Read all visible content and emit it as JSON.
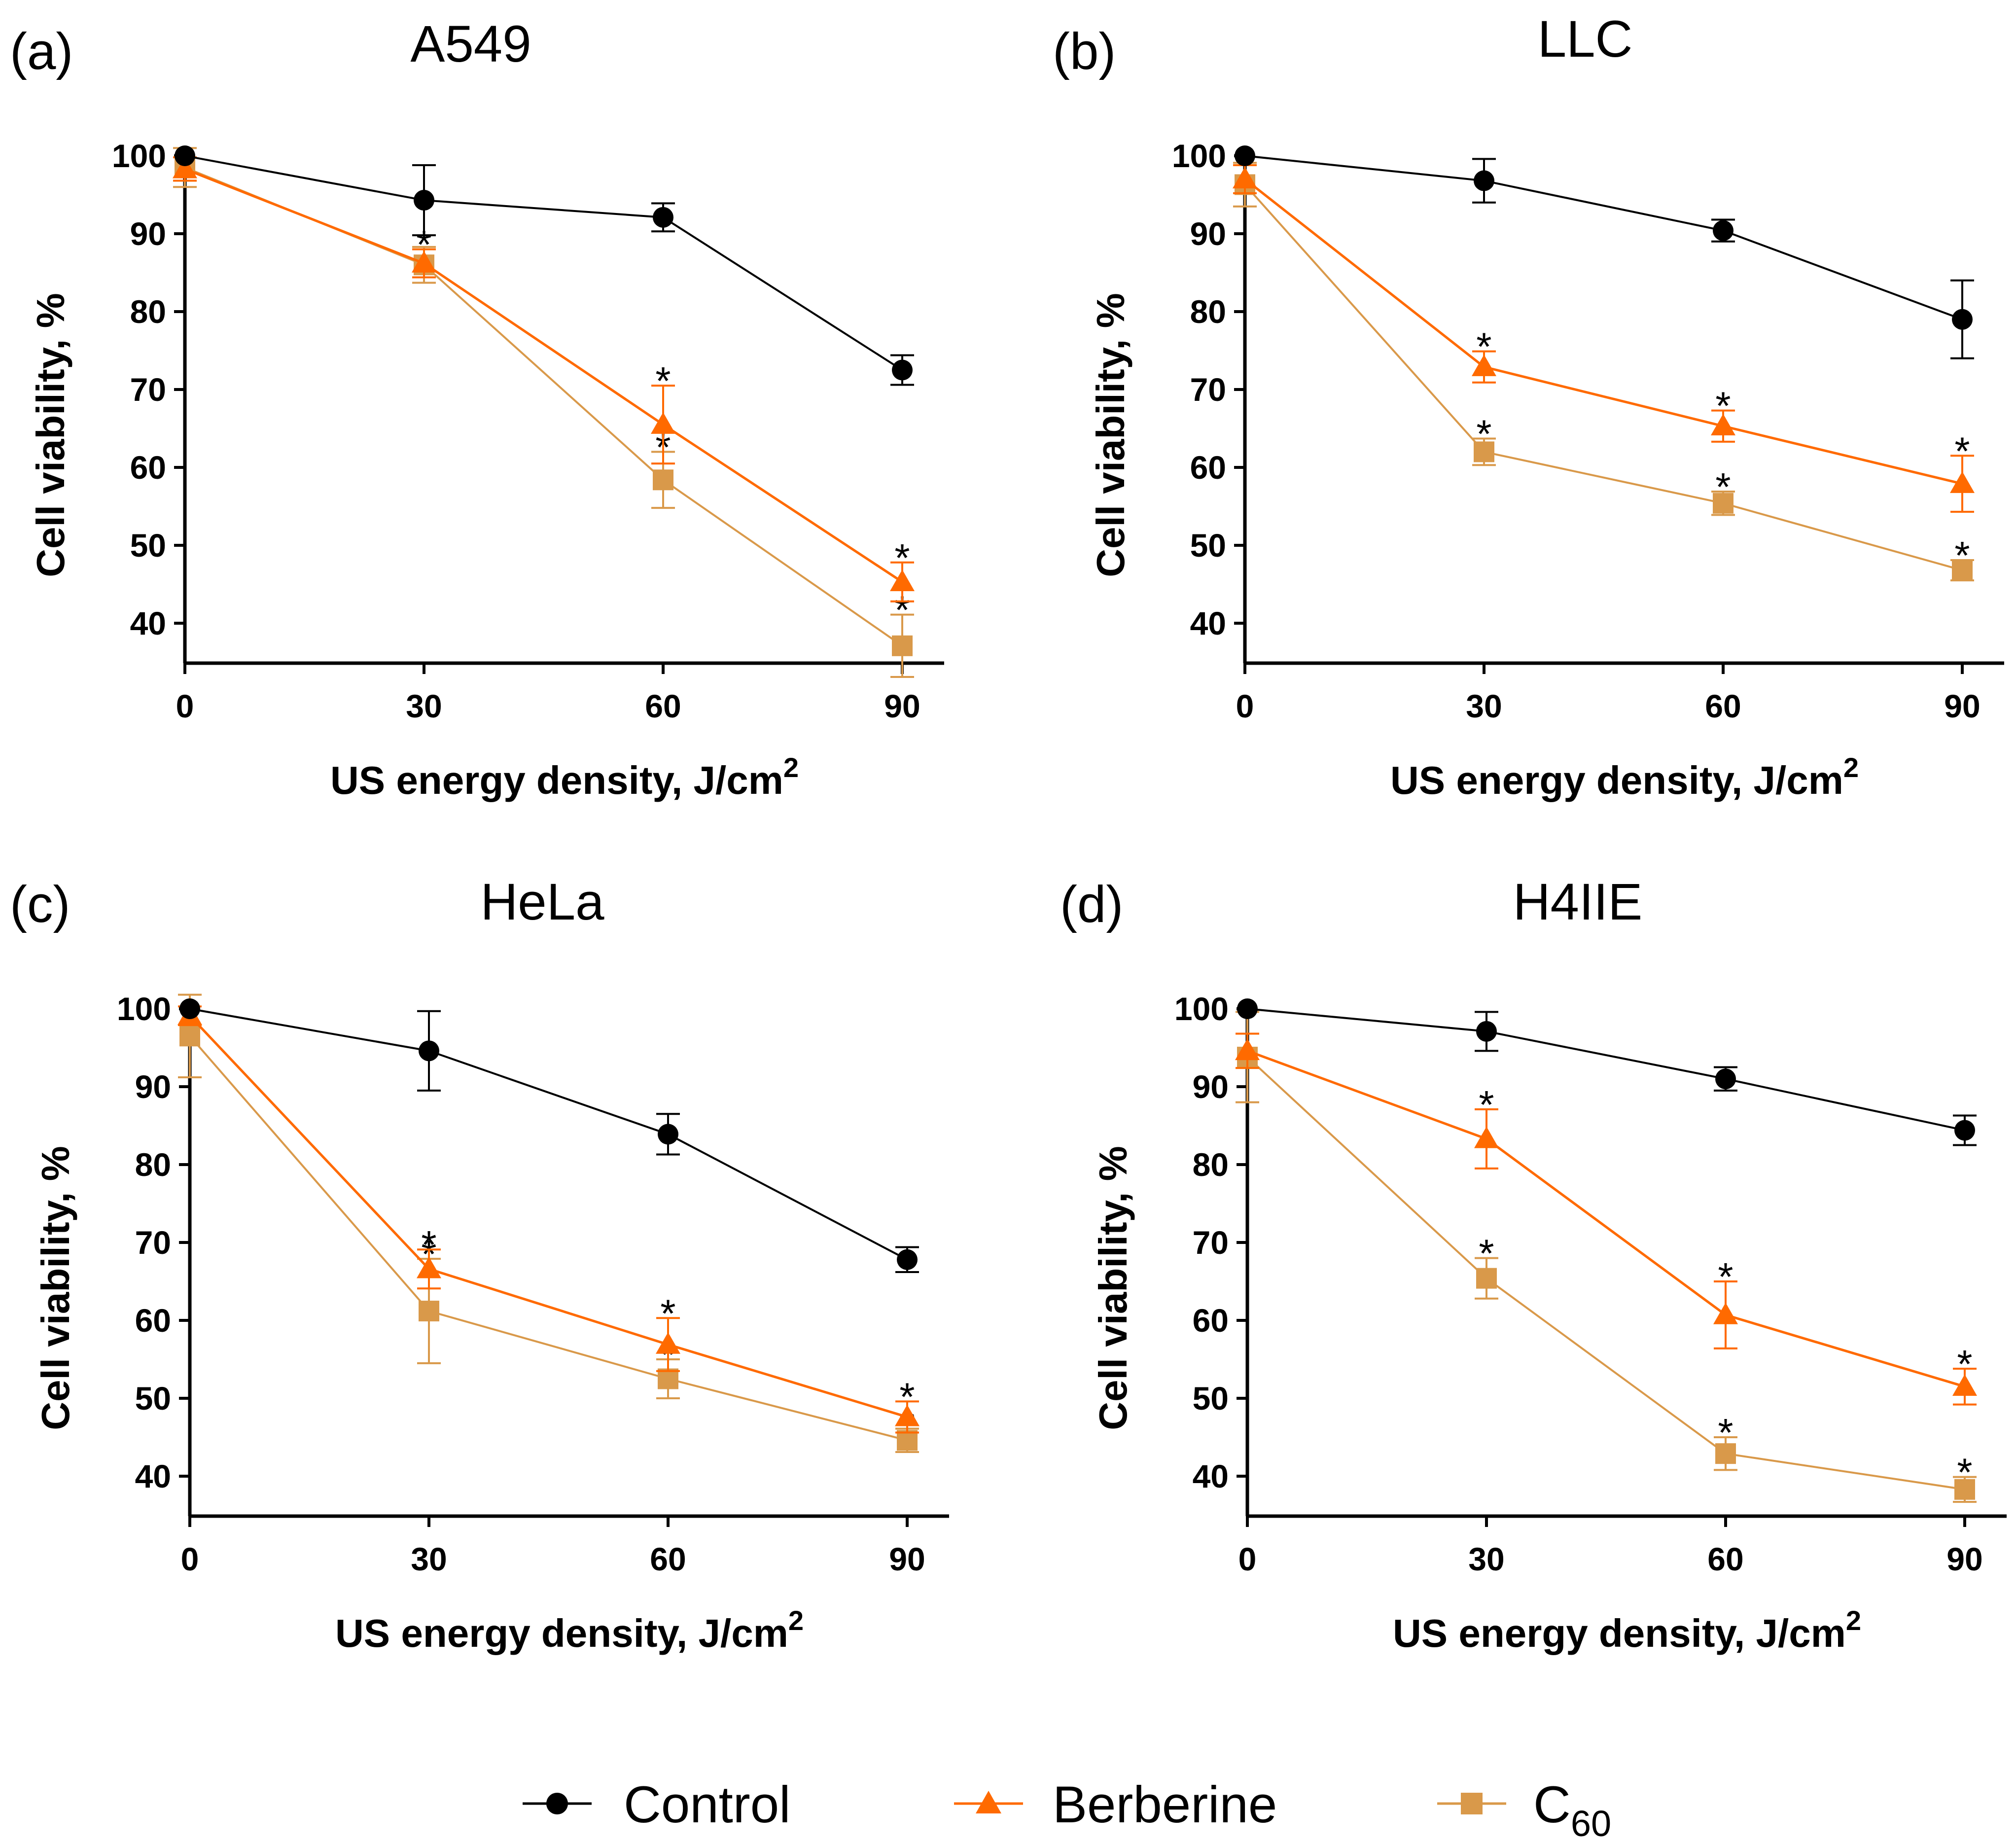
{
  "chart_data": [
    {
      "panel_label": "(a)",
      "type": "line",
      "title": "A549",
      "xlabel": "US energy density, J/cm",
      "xlabel_sup": "2",
      "ylabel": "Cell viability, %",
      "x": [
        0,
        30,
        60,
        90
      ],
      "x_ticks": [
        "0",
        "30",
        "60",
        "90"
      ],
      "y_ticks": [
        "40",
        "50",
        "60",
        "70",
        "80",
        "90",
        "100"
      ],
      "ylim": [
        35,
        102
      ],
      "series": [
        {
          "name": "Control",
          "values": [
            100,
            94.3,
            92.1,
            72.5
          ],
          "errors": [
            0,
            4.5,
            1.8,
            1.9
          ],
          "stars": [
            "",
            "",
            "",
            ""
          ]
        },
        {
          "name": "Berberine",
          "values": [
            98.3,
            86.2,
            65.5,
            45.3
          ],
          "errors": [
            1.5,
            1.8,
            5.0,
            2.5
          ],
          "stars": [
            "",
            "*",
            "*",
            "*"
          ]
        },
        {
          "name": "C60",
          "values": [
            98.5,
            86.0,
            58.4,
            37.1
          ],
          "errors": [
            2.5,
            2.3,
            3.6,
            4.0
          ],
          "stars": [
            "",
            "",
            "*",
            "*"
          ]
        }
      ]
    },
    {
      "panel_label": "(b)",
      "type": "line",
      "title": "LLC",
      "xlabel": "US energy density, J/cm",
      "xlabel_sup": "2",
      "ylabel": "Cell viability, %",
      "x": [
        0,
        30,
        60,
        90
      ],
      "x_ticks": [
        "0",
        "30",
        "60",
        "90"
      ],
      "y_ticks": [
        "40",
        "50",
        "60",
        "70",
        "80",
        "90",
        "100"
      ],
      "ylim": [
        35,
        102
      ],
      "series": [
        {
          "name": "Control",
          "values": [
            100,
            96.8,
            90.4,
            79.0
          ],
          "errors": [
            0,
            2.8,
            1.4,
            5.0
          ],
          "stars": [
            "",
            "",
            "",
            ""
          ]
        },
        {
          "name": "Berberine",
          "values": [
            97.0,
            72.9,
            65.3,
            57.9
          ],
          "errors": [
            1.8,
            2.0,
            2.0,
            3.6
          ],
          "stars": [
            "",
            "*",
            "*",
            "*"
          ]
        },
        {
          "name": "C60",
          "values": [
            96.3,
            62.0,
            55.4,
            46.8
          ],
          "errors": [
            2.8,
            1.7,
            1.5,
            1.3
          ],
          "stars": [
            "",
            "*",
            "*",
            "*"
          ]
        }
      ]
    },
    {
      "panel_label": "(c)",
      "type": "line",
      "title": "HeLa",
      "xlabel": "US energy density, J/cm",
      "xlabel_sup": "2",
      "ylabel": "Cell viability, %",
      "x": [
        0,
        30,
        60,
        90
      ],
      "x_ticks": [
        "0",
        "30",
        "60",
        "90"
      ],
      "y_ticks": [
        "40",
        "50",
        "60",
        "70",
        "80",
        "90",
        "100"
      ],
      "ylim": [
        35,
        102
      ],
      "series": [
        {
          "name": "Control",
          "values": [
            100,
            94.6,
            83.9,
            67.8
          ],
          "errors": [
            0,
            5.1,
            2.6,
            1.6
          ],
          "stars": [
            "",
            "",
            "",
            ""
          ]
        },
        {
          "name": "Berberine",
          "values": [
            99.1,
            66.6,
            56.9,
            47.6
          ],
          "errors": [
            1.2,
            2.5,
            3.4,
            2.0
          ],
          "stars": [
            "",
            "*",
            "*",
            "*"
          ]
        },
        {
          "name": "C60",
          "values": [
            96.5,
            61.2,
            52.5,
            44.6
          ],
          "errors": [
            5.3,
            6.7,
            2.5,
            1.5
          ],
          "stars": [
            "",
            "*",
            "*",
            "*"
          ]
        }
      ]
    },
    {
      "panel_label": "(d)",
      "type": "line",
      "title": "H4IIE",
      "xlabel": "US energy density, J/cm",
      "xlabel_sup": "2",
      "ylabel": "Cell viability, %",
      "x": [
        0,
        30,
        60,
        90
      ],
      "x_ticks": [
        "0",
        "30",
        "60",
        "90"
      ],
      "y_ticks": [
        "40",
        "50",
        "60",
        "70",
        "80",
        "90",
        "100"
      ],
      "ylim": [
        35,
        102
      ],
      "series": [
        {
          "name": "Control",
          "values": [
            100,
            97.1,
            91.0,
            84.4
          ],
          "errors": [
            0,
            2.5,
            1.5,
            1.9
          ],
          "stars": [
            "",
            "",
            "",
            ""
          ]
        },
        {
          "name": "Berberine",
          "values": [
            94.6,
            83.3,
            60.7,
            51.5
          ],
          "errors": [
            2.2,
            3.8,
            4.3,
            2.3
          ],
          "stars": [
            "",
            "*",
            "*",
            "*"
          ]
        },
        {
          "name": "C60",
          "values": [
            93.8,
            65.4,
            42.9,
            38.3
          ],
          "errors": [
            5.8,
            2.6,
            2.1,
            1.6
          ],
          "stars": [
            "",
            "*",
            "*",
            "*"
          ]
        }
      ]
    }
  ],
  "legend": [
    {
      "name": "Control",
      "label": "Control",
      "sub": ""
    },
    {
      "name": "Berberine",
      "label": "Berberine",
      "sub": ""
    },
    {
      "name": "C60",
      "label": "C",
      "sub": "60"
    }
  ],
  "colors": {
    "Control": "#000000",
    "Berberine": "#ff6a00",
    "C60": "#d9994a"
  }
}
